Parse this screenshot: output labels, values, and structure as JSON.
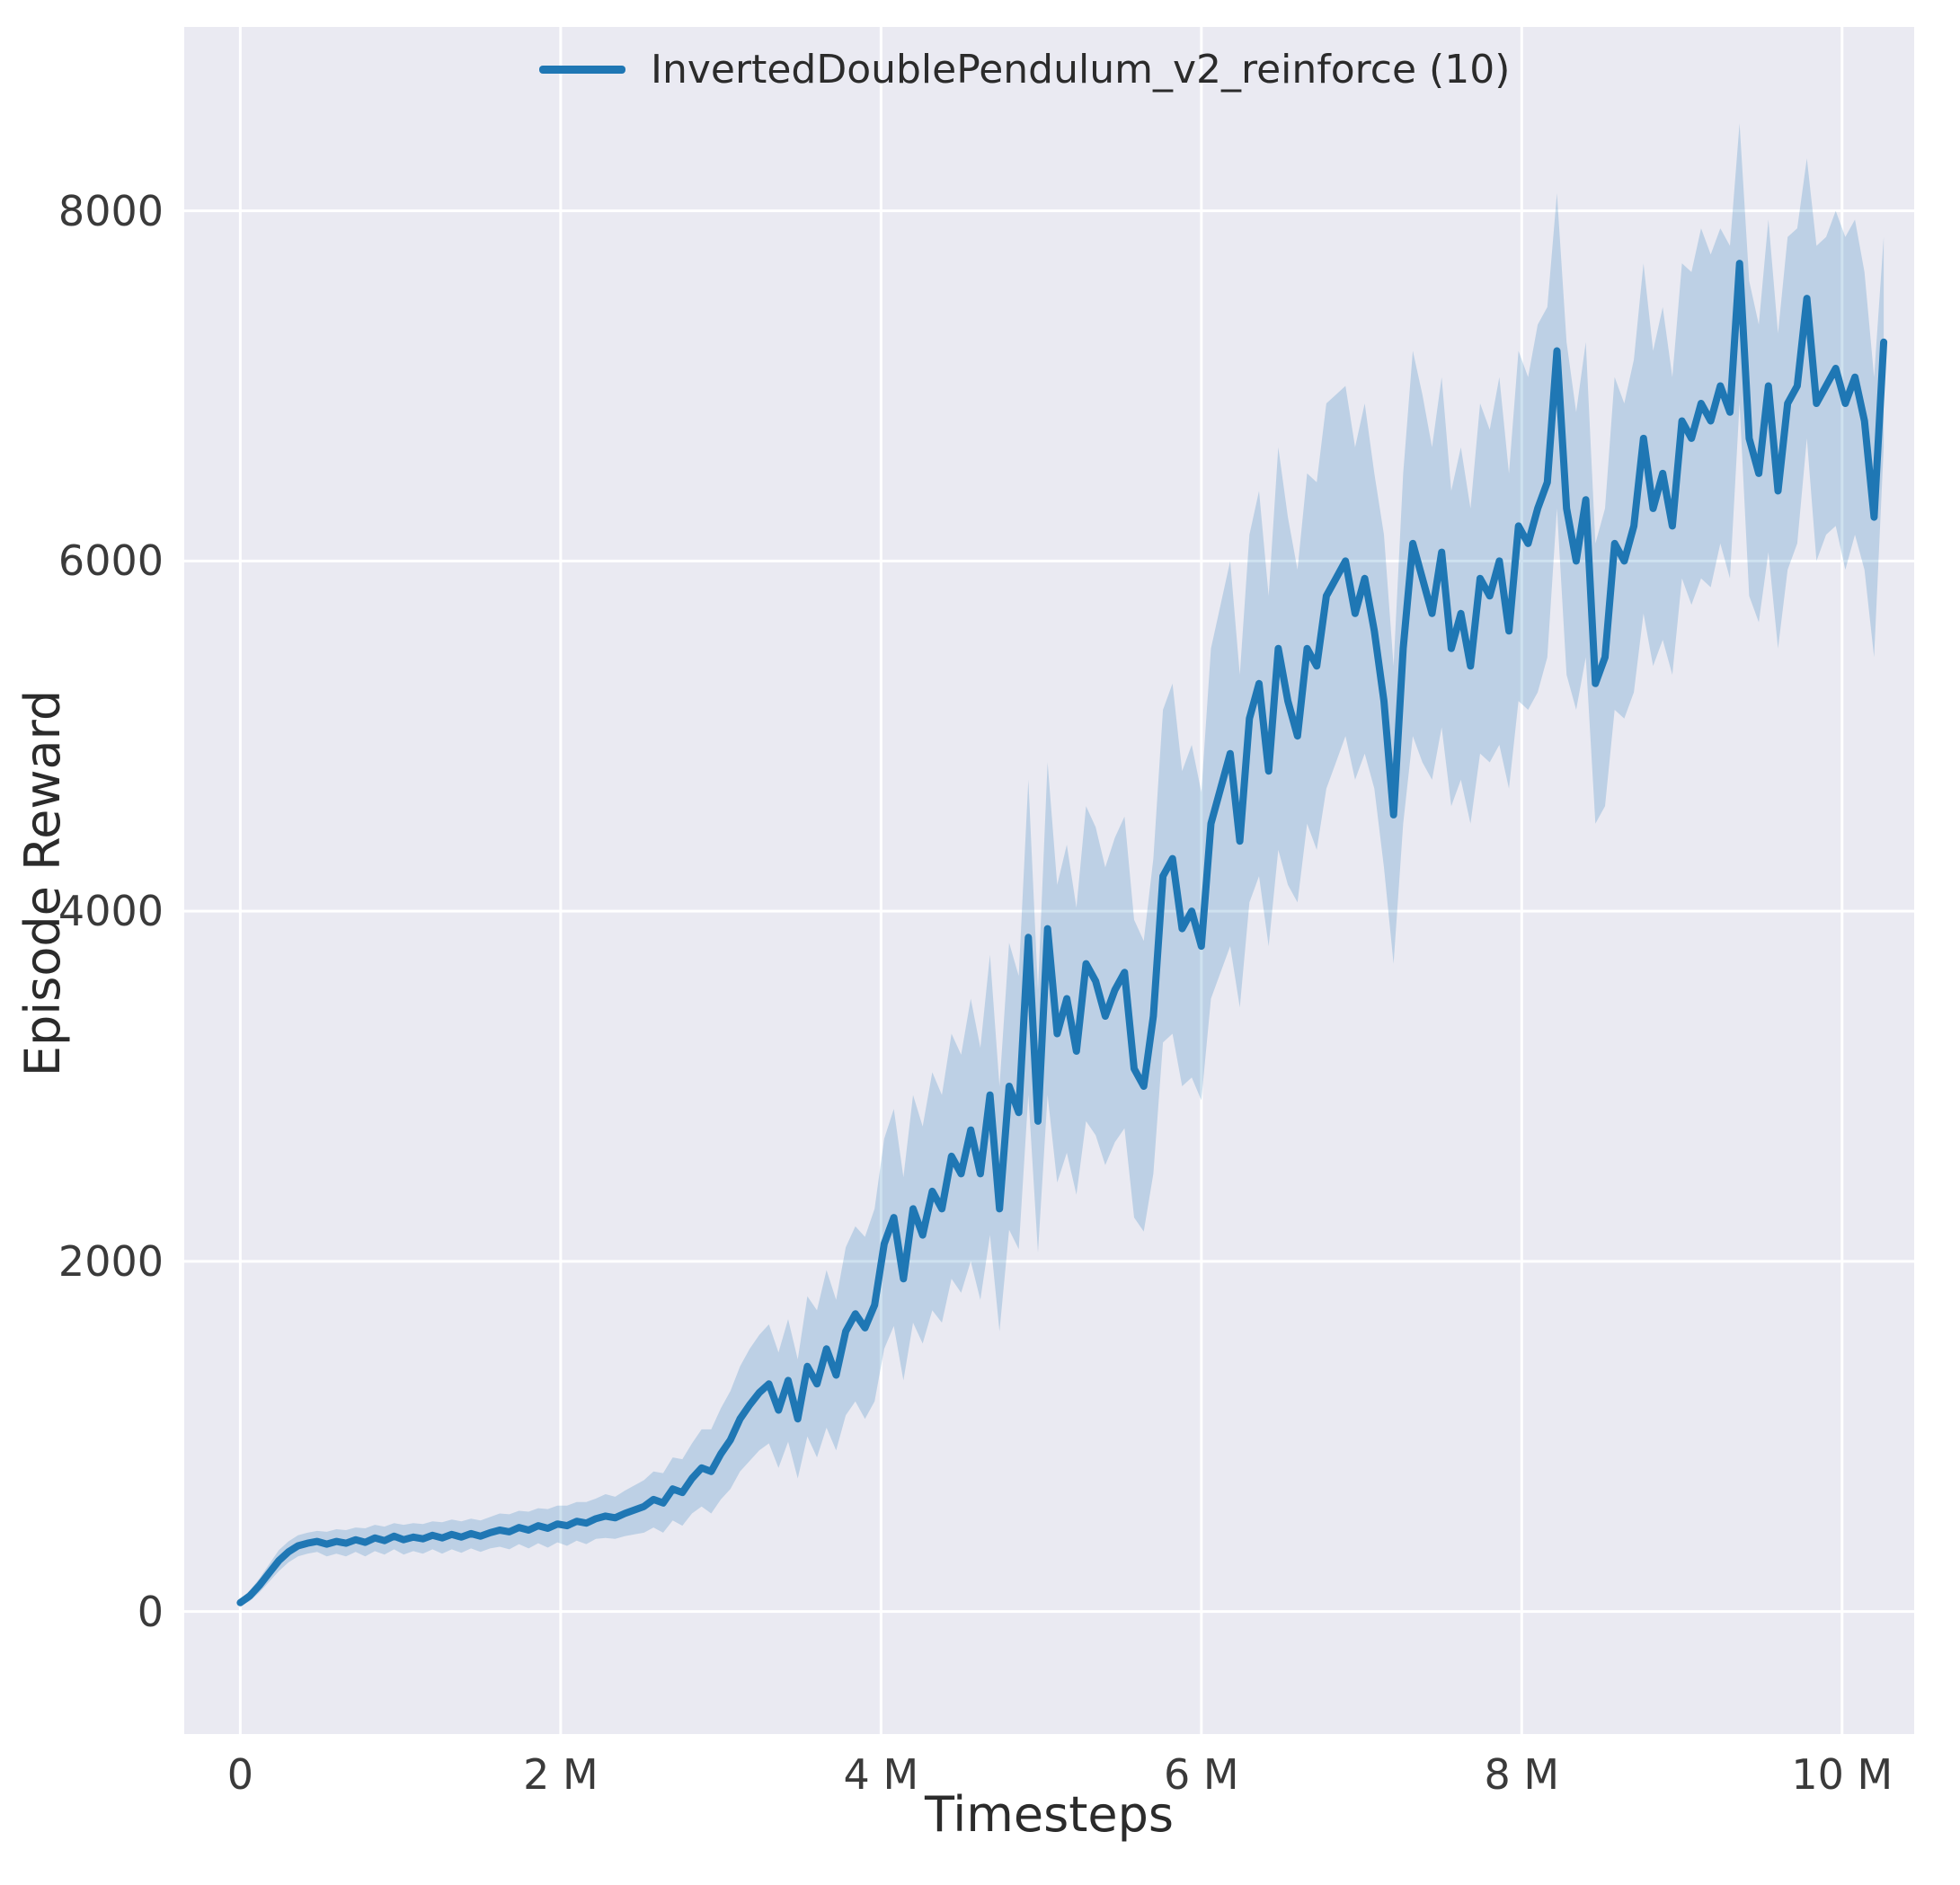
{
  "figure": {
    "background": "#ffffff",
    "plot_background": "#eaeaf2",
    "grid_color": "#ffffff",
    "label_color": "#2b2b2b",
    "tick_color": "#3a3a3a"
  },
  "legend": {
    "label": "InvertedDoublePendulum_v2_reinforce (10)",
    "line_color": "#1f77b4"
  },
  "chart_data": {
    "type": "line",
    "title": "",
    "xlabel": "Timesteps",
    "ylabel": "Episode Reward",
    "x_unit": "millions of timesteps",
    "xlim": [
      -0.35,
      10.45
    ],
    "ylim": [
      -700,
      9050
    ],
    "grid": true,
    "legend_position": "upper center",
    "x_ticks": [
      {
        "value": 0,
        "label": "0"
      },
      {
        "value": 2,
        "label": "2 M"
      },
      {
        "value": 4,
        "label": "4 M"
      },
      {
        "value": 6,
        "label": "6 M"
      },
      {
        "value": 8,
        "label": "8 M"
      },
      {
        "value": 10,
        "label": "10 M"
      }
    ],
    "y_ticks": [
      {
        "value": 0,
        "label": "0"
      },
      {
        "value": 2000,
        "label": "2000"
      },
      {
        "value": 4000,
        "label": "4000"
      },
      {
        "value": 6000,
        "label": "6000"
      },
      {
        "value": 8000,
        "label": "8000"
      }
    ],
    "series": [
      {
        "name": "InvertedDoublePendulum_v2_reinforce (10)",
        "color": "#1f77b4",
        "band_alpha": 0.22,
        "x_start": 0,
        "x_step": 0.06,
        "mean": [
          50,
          90,
          150,
          220,
          290,
          340,
          375,
          390,
          400,
          385,
          400,
          390,
          410,
          395,
          420,
          405,
          430,
          410,
          425,
          415,
          435,
          420,
          440,
          425,
          445,
          430,
          450,
          465,
          455,
          480,
          465,
          490,
          475,
          500,
          490,
          515,
          505,
          530,
          545,
          535,
          560,
          580,
          600,
          640,
          620,
          700,
          680,
          760,
          820,
          800,
          900,
          980,
          1100,
          1180,
          1250,
          1300,
          1150,
          1320,
          1100,
          1400,
          1300,
          1500,
          1350,
          1600,
          1700,
          1620,
          1750,
          2100,
          2250,
          1900,
          2300,
          2150,
          2400,
          2300,
          2600,
          2500,
          2750,
          2500,
          2950,
          2300,
          3000,
          2850,
          3850,
          2800,
          3900,
          3300,
          3500,
          3200,
          3700,
          3600,
          3400,
          3550,
          3650,
          3100,
          3000,
          3400,
          4200,
          4300,
          3900,
          4000,
          3800,
          4500,
          4700,
          4900,
          4400,
          5100,
          5300,
          4800,
          5500,
          5200,
          5000,
          5500,
          5400,
          5800,
          5900,
          6000,
          5700,
          5900,
          5600,
          5200,
          4550,
          5500,
          6100,
          5900,
          5700,
          6050,
          5500,
          5700,
          5400,
          5900,
          5800,
          6000,
          5600,
          6200,
          6100,
          6300,
          6450,
          7200,
          6300,
          6000,
          6350,
          5300,
          5450,
          6100,
          6000,
          6200,
          6700,
          6300,
          6500,
          6200,
          6800,
          6700,
          6900,
          6800,
          7000,
          6850,
          7700,
          6700,
          6500,
          7000,
          6400,
          6900,
          7000,
          7500,
          6900,
          7000,
          7100,
          6900,
          7050,
          6800,
          6250,
          7250
        ],
        "band_halfwidth": [
          20,
          30,
          40,
          50,
          60,
          60,
          60,
          60,
          60,
          70,
          70,
          75,
          70,
          80,
          75,
          80,
          75,
          85,
          80,
          85,
          80,
          90,
          85,
          90,
          85,
          90,
          90,
          95,
          100,
          95,
          105,
          100,
          110,
          105,
          115,
          110,
          120,
          115,
          125,
          120,
          130,
          140,
          150,
          160,
          170,
          180,
          190,
          200,
          220,
          240,
          260,
          280,
          300,
          320,
          330,
          340,
          330,
          350,
          340,
          400,
          420,
          450,
          430,
          480,
          500,
          520,
          550,
          600,
          620,
          580,
          650,
          620,
          680,
          650,
          700,
          680,
          750,
          720,
          800,
          700,
          820,
          780,
          900,
          750,
          950,
          850,
          880,
          820,
          900,
          880,
          850,
          870,
          890,
          850,
          830,
          900,
          950,
          1000,
          900,
          950,
          880,
          1000,
          1050,
          1100,
          950,
          1050,
          1100,
          1000,
          1150,
          1050,
          950,
          1000,
          1050,
          1100,
          1050,
          1000,
          950,
          1000,
          900,
          950,
          850,
          1000,
          1100,
          1050,
          950,
          1000,
          900,
          950,
          900,
          1000,
          950,
          1050,
          900,
          1000,
          950,
          1050,
          1000,
          900,
          950,
          850,
          900,
          800,
          850,
          950,
          900,
          950,
          1000,
          900,
          950,
          850,
          900,
          950,
          1000,
          950,
          900,
          950,
          800,
          900,
          850,
          950,
          900,
          950,
          900,
          800,
          900,
          850,
          900,
          950,
          900,
          850,
          800,
          600
        ]
      }
    ]
  }
}
